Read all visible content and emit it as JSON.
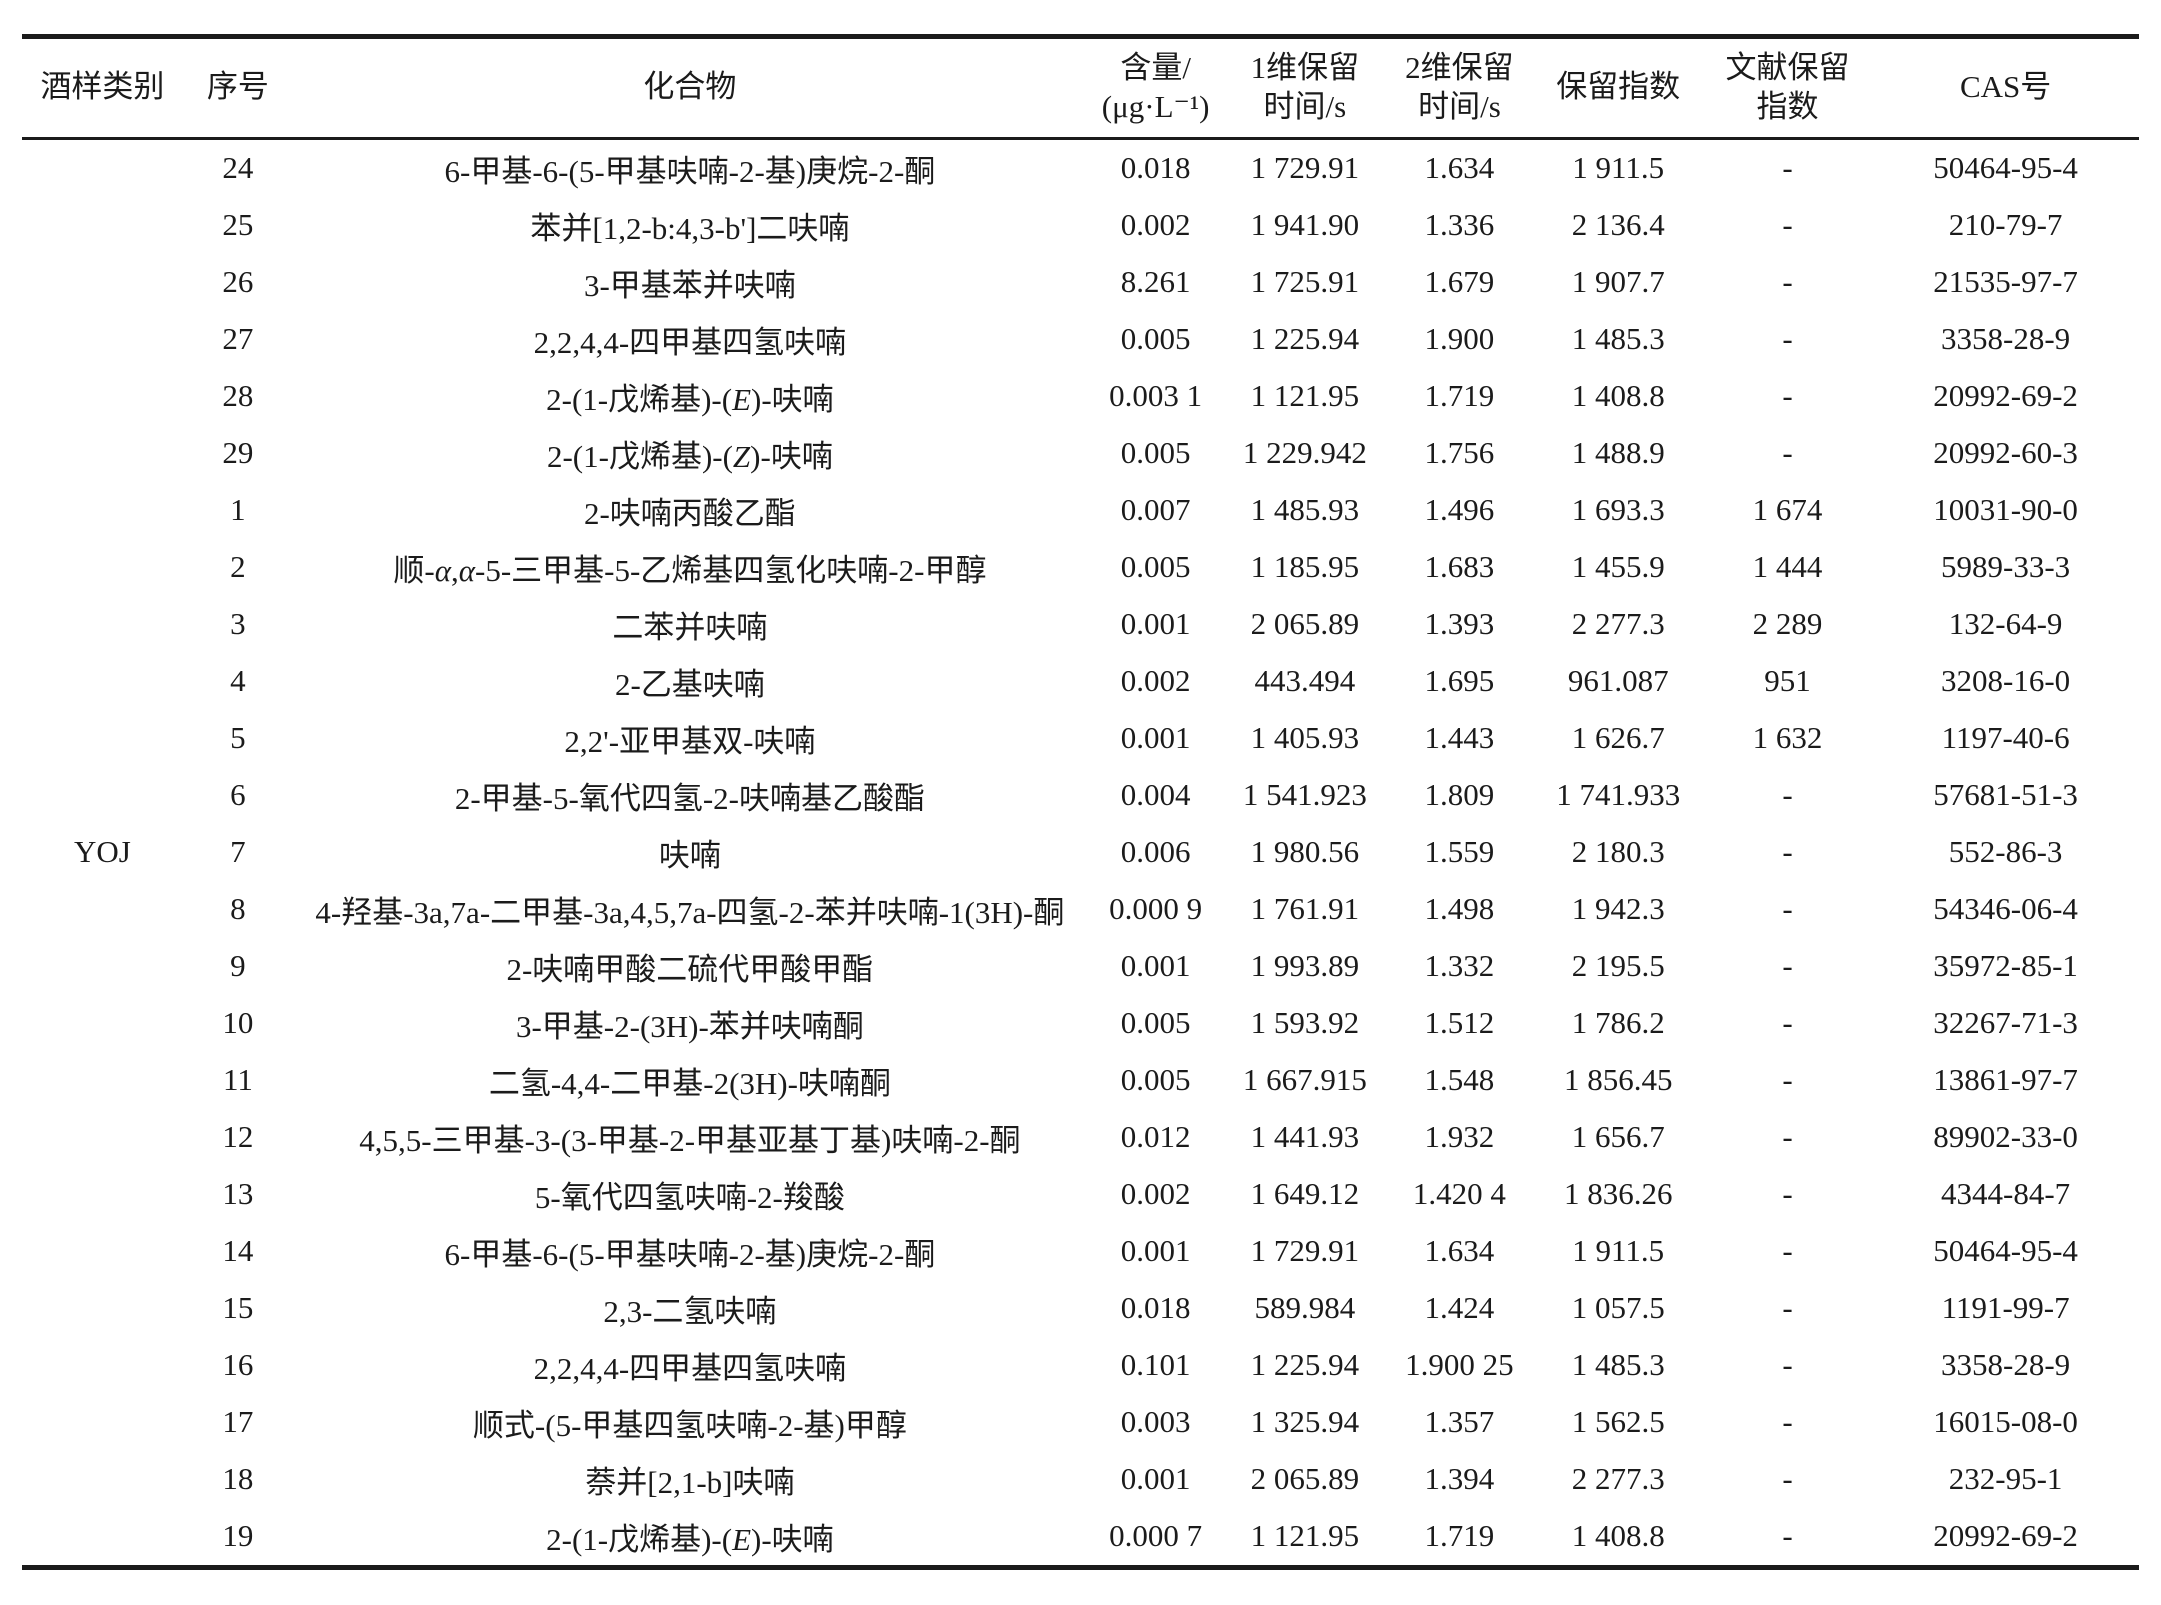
{
  "table": {
    "category_label": "YOJ",
    "columns": [
      {
        "key": "category",
        "lines": [
          "酒样类别"
        ]
      },
      {
        "key": "index",
        "lines": [
          "序号"
        ]
      },
      {
        "key": "compound",
        "lines": [
          "化合物"
        ]
      },
      {
        "key": "content",
        "lines": [
          "含量/",
          "(μg·L⁻¹)"
        ]
      },
      {
        "key": "rt1",
        "lines": [
          "1维保留",
          "时间/s"
        ]
      },
      {
        "key": "rt2",
        "lines": [
          "2维保留",
          "时间/s"
        ]
      },
      {
        "key": "ri",
        "lines": [
          "保留指数"
        ]
      },
      {
        "key": "ri_lit",
        "lines": [
          "文献保留",
          "指数"
        ]
      },
      {
        "key": "cas",
        "lines": [
          "CAS号"
        ]
      }
    ],
    "rows": [
      {
        "index": "24",
        "compound": "6-甲基-6-(5-甲基呋喃-2-基)庚烷-2-酮",
        "content": "0.018",
        "rt1": "1 729.91",
        "rt2": "1.634",
        "ri": "1 911.5",
        "ri_lit": "-",
        "cas": "50464-95-4"
      },
      {
        "index": "25",
        "compound": "苯并[1,2-b:4,3-b']二呋喃",
        "content": "0.002",
        "rt1": "1 941.90",
        "rt2": "1.336",
        "ri": "2 136.4",
        "ri_lit": "-",
        "cas": "210-79-7"
      },
      {
        "index": "26",
        "compound": "3-甲基苯并呋喃",
        "content": "8.261",
        "rt1": "1 725.91",
        "rt2": "1.679",
        "ri": "1 907.7",
        "ri_lit": "-",
        "cas": "21535-97-7"
      },
      {
        "index": "27",
        "compound": "2,2,4,4-四甲基四氢呋喃",
        "content": "0.005",
        "rt1": "1 225.94",
        "rt2": "1.900",
        "ri": "1 485.3",
        "ri_lit": "-",
        "cas": "3358-28-9"
      },
      {
        "index": "28",
        "compound": "2-(1-戊烯基)-(E)-呋喃",
        "content": "0.003 1",
        "rt1": "1 121.95",
        "rt2": "1.719",
        "ri": "1 408.8",
        "ri_lit": "-",
        "cas": "20992-69-2"
      },
      {
        "index": "29",
        "compound": "2-(1-戊烯基)-(Z)-呋喃",
        "content": "0.005",
        "rt1": "1 229.942",
        "rt2": "1.756",
        "ri": "1 488.9",
        "ri_lit": "-",
        "cas": "20992-60-3"
      },
      {
        "index": "1",
        "compound": "2-呋喃丙酸乙酯",
        "content": "0.007",
        "rt1": "1 485.93",
        "rt2": "1.496",
        "ri": "1 693.3",
        "ri_lit": "1 674",
        "cas": "10031-90-0"
      },
      {
        "index": "2",
        "compound": "顺-α,α-5-三甲基-5-乙烯基四氢化呋喃-2-甲醇",
        "content": "0.005",
        "rt1": "1 185.95",
        "rt2": "1.683",
        "ri": "1 455.9",
        "ri_lit": "1 444",
        "cas": "5989-33-3"
      },
      {
        "index": "3",
        "compound": "二苯并呋喃",
        "content": "0.001",
        "rt1": "2 065.89",
        "rt2": "1.393",
        "ri": "2 277.3",
        "ri_lit": "2 289",
        "cas": "132-64-9"
      },
      {
        "index": "4",
        "compound": "2-乙基呋喃",
        "content": "0.002",
        "rt1": "443.494",
        "rt2": "1.695",
        "ri": "961.087",
        "ri_lit": "951",
        "cas": "3208-16-0"
      },
      {
        "index": "5",
        "compound": "2,2'-亚甲基双-呋喃",
        "content": "0.001",
        "rt1": "1 405.93",
        "rt2": "1.443",
        "ri": "1 626.7",
        "ri_lit": "1 632",
        "cas": "1197-40-6"
      },
      {
        "index": "6",
        "compound": "2-甲基-5-氧代四氢-2-呋喃基乙酸酯",
        "content": "0.004",
        "rt1": "1 541.923",
        "rt2": "1.809",
        "ri": "1 741.933",
        "ri_lit": "-",
        "cas": "57681-51-3"
      },
      {
        "index": "7",
        "compound": "呋喃",
        "content": "0.006",
        "rt1": "1 980.56",
        "rt2": "1.559",
        "ri": "2 180.3",
        "ri_lit": "-",
        "cas": "552-86-3"
      },
      {
        "index": "8",
        "compound": "4-羟基-3a,7a-二甲基-3a,4,5,7a-四氢-2-苯并呋喃-1(3H)-酮",
        "content": "0.000 9",
        "rt1": "1 761.91",
        "rt2": "1.498",
        "ri": "1 942.3",
        "ri_lit": "-",
        "cas": "54346-06-4"
      },
      {
        "index": "9",
        "compound": "2-呋喃甲酸二硫代甲酸甲酯",
        "content": "0.001",
        "rt1": "1 993.89",
        "rt2": "1.332",
        "ri": "2 195.5",
        "ri_lit": "-",
        "cas": "35972-85-1"
      },
      {
        "index": "10",
        "compound": "3-甲基-2-(3H)-苯并呋喃酮",
        "content": "0.005",
        "rt1": "1 593.92",
        "rt2": "1.512",
        "ri": "1 786.2",
        "ri_lit": "-",
        "cas": "32267-71-3"
      },
      {
        "index": "11",
        "compound": "二氢-4,4-二甲基-2(3H)-呋喃酮",
        "content": "0.005",
        "rt1": "1 667.915",
        "rt2": "1.548",
        "ri": "1 856.45",
        "ri_lit": "-",
        "cas": "13861-97-7"
      },
      {
        "index": "12",
        "compound": "4,5,5-三甲基-3-(3-甲基-2-甲基亚基丁基)呋喃-2-酮",
        "content": "0.012",
        "rt1": "1 441.93",
        "rt2": "1.932",
        "ri": "1 656.7",
        "ri_lit": "-",
        "cas": "89902-33-0"
      },
      {
        "index": "13",
        "compound": "5-氧代四氢呋喃-2-羧酸",
        "content": "0.002",
        "rt1": "1 649.12",
        "rt2": "1.420 4",
        "ri": "1 836.26",
        "ri_lit": "-",
        "cas": "4344-84-7"
      },
      {
        "index": "14",
        "compound": "6-甲基-6-(5-甲基呋喃-2-基)庚烷-2-酮",
        "content": "0.001",
        "rt1": "1 729.91",
        "rt2": "1.634",
        "ri": "1 911.5",
        "ri_lit": "-",
        "cas": "50464-95-4"
      },
      {
        "index": "15",
        "compound": "2,3-二氢呋喃",
        "content": "0.018",
        "rt1": "589.984",
        "rt2": "1.424",
        "ri": "1 057.5",
        "ri_lit": "-",
        "cas": "1191-99-7"
      },
      {
        "index": "16",
        "compound": "2,2,4,4-四甲基四氢呋喃",
        "content": "0.101",
        "rt1": "1 225.94",
        "rt2": "1.900 25",
        "ri": "1 485.3",
        "ri_lit": "-",
        "cas": "3358-28-9"
      },
      {
        "index": "17",
        "compound": "顺式-(5-甲基四氢呋喃-2-基)甲醇",
        "content": "0.003",
        "rt1": "1 325.94",
        "rt2": "1.357",
        "ri": "1 562.5",
        "ri_lit": "-",
        "cas": "16015-08-0"
      },
      {
        "index": "18",
        "compound": "萘并[2,1-b]呋喃",
        "content": "0.001",
        "rt1": "2 065.89",
        "rt2": "1.394",
        "ri": "2 277.3",
        "ri_lit": "-",
        "cas": "232-95-1"
      },
      {
        "index": "19",
        "compound": "2-(1-戊烯基)-(E)-呋喃",
        "content": "0.000 7",
        "rt1": "1 121.95",
        "rt2": "1.719",
        "ri": "1 408.8",
        "ri_lit": "-",
        "cas": "20992-69-2"
      }
    ]
  }
}
